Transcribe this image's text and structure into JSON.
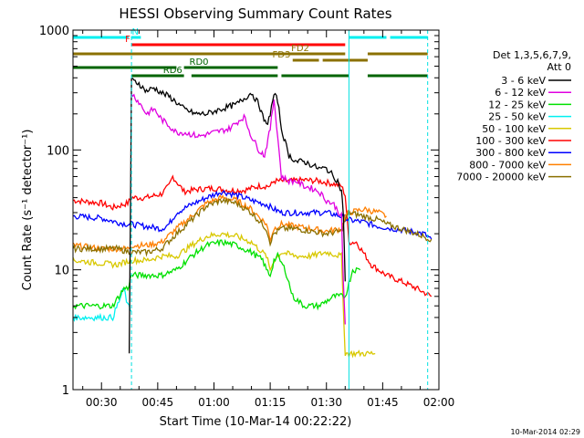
{
  "chart_data": {
    "type": "line",
    "title": "HESSI Observing Summary Count Rates",
    "xlabel": "Start Time (10-Mar-14 00:22:22)",
    "ylabel": "Count Rate (s⁻¹ detector⁻¹)",
    "yscale": "log",
    "ylim": [
      1,
      1000
    ],
    "xlim_minutes": [
      22.4,
      120.0
    ],
    "x_ticks": [
      {
        "t": 30,
        "label": "00:30"
      },
      {
        "t": 45,
        "label": "00:45"
      },
      {
        "t": 60,
        "label": "01:00"
      },
      {
        "t": 75,
        "label": "01:15"
      },
      {
        "t": 90,
        "label": "01:30"
      },
      {
        "t": 105,
        "label": "01:45"
      },
      {
        "t": 120,
        "label": "02:00"
      }
    ],
    "y_ticks": [
      {
        "v": 1,
        "label": "1"
      },
      {
        "v": 10,
        "label": "10"
      },
      {
        "v": 100,
        "label": "100"
      },
      {
        "v": 1000,
        "label": "1000"
      }
    ],
    "legend_header": [
      "Det 1,3,5,6,7,9,",
      "Att 0"
    ],
    "legend_position": "right",
    "series": [
      {
        "name": "3 - 6 keV",
        "color": "#000000",
        "x": [
          37.4,
          38,
          40,
          41,
          42,
          44,
          46,
          48,
          50,
          52,
          55,
          58,
          62,
          66,
          70,
          72,
          73,
          74,
          75,
          76,
          77,
          78,
          80,
          82,
          84,
          86,
          88,
          90,
          92,
          93,
          94,
          94.5,
          95
        ],
        "y": [
          2,
          380,
          360,
          330,
          310,
          330,
          300,
          280,
          250,
          220,
          200,
          200,
          220,
          240,
          300,
          240,
          190,
          160,
          200,
          290,
          260,
          150,
          90,
          80,
          80,
          75,
          70,
          70,
          60,
          55,
          45,
          30,
          8
        ]
      },
      {
        "name": "6 - 12 keV",
        "color": "#e000e0",
        "x": [
          38,
          40,
          42,
          44,
          46,
          48,
          50,
          52,
          56,
          60,
          64,
          68,
          70,
          72,
          73.5,
          75,
          76,
          77,
          78,
          80,
          82,
          84,
          86,
          88,
          90,
          92,
          94,
          94.5,
          95
        ],
        "y": [
          300,
          250,
          200,
          220,
          180,
          160,
          140,
          140,
          130,
          140,
          150,
          190,
          130,
          100,
          90,
          150,
          270,
          130,
          60,
          55,
          55,
          50,
          48,
          45,
          38,
          35,
          28,
          8,
          3.5
        ]
      },
      {
        "name": "12 - 25 keV",
        "color": "#00e000",
        "x": [
          22.4,
          33,
          36,
          37,
          38,
          42,
          46,
          50,
          54,
          58,
          62,
          66,
          70,
          73,
          74,
          75,
          76,
          77,
          79,
          81,
          84,
          88,
          92,
          95,
          97,
          99
        ],
        "y": [
          5,
          5,
          7,
          7,
          9,
          9,
          9,
          10,
          13,
          16,
          17,
          16,
          14,
          12,
          10,
          9,
          12,
          13,
          10,
          6,
          5,
          5,
          6,
          6,
          10,
          10
        ]
      },
      {
        "name": "25 - 50 keV",
        "color": "#00f0f0",
        "x": [
          22.4,
          33,
          36,
          37,
          38
        ],
        "y": [
          4,
          4,
          7,
          5,
          4.5
        ]
      },
      {
        "name": "50 - 100 keV",
        "color": "#d8c800",
        "x": [
          22.4,
          34,
          38,
          42,
          46,
          50,
          54,
          58,
          62,
          66,
          70,
          74,
          75,
          76,
          78,
          82,
          86,
          90,
          94,
          95,
          97,
          99,
          101,
          103
        ],
        "y": [
          12,
          11,
          12,
          12,
          13,
          13,
          16,
          19,
          20,
          19,
          17,
          13,
          10,
          12,
          14,
          13,
          13,
          14,
          13,
          2,
          2,
          2,
          2,
          2
        ]
      },
      {
        "name": "100 - 300 keV",
        "color": "#ff0000",
        "x": [
          22.4,
          30,
          33,
          37,
          38,
          42,
          46,
          48,
          49,
          52,
          56,
          60,
          64,
          68,
          72,
          75,
          76,
          78,
          80,
          84,
          88,
          92,
          94,
          95,
          96,
          98,
          102,
          106,
          110,
          114,
          118
        ],
        "y": [
          38,
          36,
          33,
          36,
          40,
          40,
          43,
          50,
          60,
          45,
          47,
          48,
          46,
          46,
          50,
          50,
          55,
          55,
          55,
          56,
          55,
          52,
          50,
          42,
          17,
          17,
          11,
          9,
          8,
          7,
          6
        ]
      },
      {
        "name": "300 - 800 keV",
        "color": "#0000ff",
        "x": [
          22.4,
          30,
          34,
          37,
          38,
          42,
          46,
          48,
          50,
          54,
          58,
          62,
          66,
          70,
          74,
          76,
          78,
          82,
          86,
          90,
          94,
          95,
          96,
          100,
          104,
          108,
          112,
          116,
          118
        ],
        "y": [
          28,
          27,
          25,
          24,
          24,
          23,
          22,
          24,
          30,
          35,
          40,
          45,
          42,
          38,
          35,
          32,
          30,
          30,
          30,
          30,
          28,
          27,
          26,
          25,
          23,
          22,
          21,
          20,
          18
        ]
      },
      {
        "name": "800 - 7000 keV",
        "color": "#ff7f00",
        "x": [
          22.4,
          30,
          34,
          37,
          38,
          42,
          46,
          50,
          54,
          58,
          62,
          66,
          70,
          74,
          75,
          76,
          78,
          82,
          86,
          90,
          94,
          95,
          96,
          100,
          104,
          106
        ],
        "y": [
          16,
          15,
          15,
          15,
          16,
          16,
          17,
          22,
          28,
          36,
          40,
          38,
          32,
          24,
          18,
          22,
          24,
          23,
          22,
          21,
          22,
          28,
          30,
          32,
          30,
          28
        ]
      },
      {
        "name": "7000 - 20000 keV",
        "color": "#8b7000",
        "x": [
          22.4,
          30,
          34,
          38,
          42,
          46,
          50,
          54,
          58,
          62,
          66,
          70,
          74,
          75,
          76,
          78,
          82,
          86,
          90,
          94,
          95,
          96,
          100,
          104,
          106,
          110,
          114,
          118
        ],
        "y": [
          15,
          15,
          15,
          14,
          14,
          15,
          20,
          26,
          34,
          38,
          36,
          30,
          22,
          17,
          20,
          22,
          22,
          21,
          20,
          21,
          26,
          30,
          28,
          26,
          24,
          22,
          20,
          18
        ]
      }
    ],
    "flag_bars": [
      {
        "name": "N",
        "color": "#00f0f0",
        "segments": [
          [
            22.4,
            37.2
          ],
          [
            38,
            40.5
          ],
          [
            96,
            106
          ],
          [
            107,
            117
          ]
        ],
        "label_t": 39
      },
      {
        "name": "F",
        "color": "#ff0000",
        "segments": [
          [
            38,
            95
          ]
        ],
        "label_t": 37
      },
      {
        "name": "FD2",
        "color": "#8b7000",
        "segments": [
          [
            22.4,
            95
          ],
          [
            101,
            117
          ]
        ],
        "label_t": 83
      },
      {
        "name": "FD3",
        "color": "#8b7000",
        "segments": [
          [
            81,
            88
          ],
          [
            89,
            101
          ]
        ],
        "label_t": 78
      },
      {
        "name": "RD0",
        "color": "#006400",
        "segments": [
          [
            22.4,
            50
          ],
          [
            52,
            77
          ]
        ],
        "label_t": 56
      },
      {
        "name": "RD6",
        "color": "#006400",
        "segments": [
          [
            38,
            52
          ],
          [
            54,
            77
          ],
          [
            78,
            96
          ],
          [
            101,
            117
          ]
        ],
        "label_t": 49
      }
    ],
    "night_boundaries": [
      {
        "t": 22.4,
        "style": "solid"
      },
      {
        "t": 38,
        "style": "dashed"
      },
      {
        "t": 96,
        "style": "solid"
      },
      {
        "t": 117,
        "style": "dashed"
      }
    ]
  },
  "footer": {
    "timestamp": "10-Mar-2014 02:29"
  }
}
